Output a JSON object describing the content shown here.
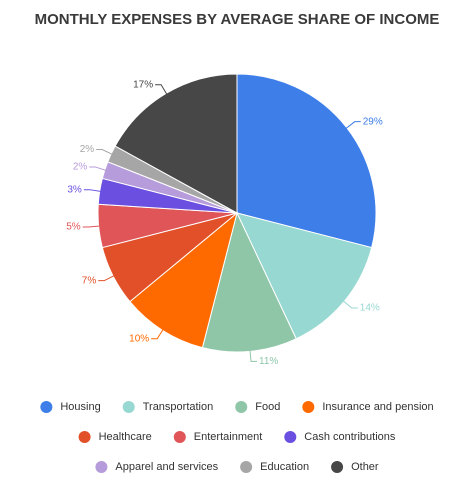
{
  "chart_data": {
    "type": "pie",
    "title": "MONTHLY EXPENSES BY AVERAGE SHARE OF INCOME",
    "categories": [
      "Housing",
      "Transportation",
      "Food",
      "Insurance and pension",
      "Healthcare",
      "Entertainment",
      "Cash contributions",
      "Apparel and services",
      "Education",
      "Other"
    ],
    "values": [
      29,
      14,
      11,
      10,
      7,
      5,
      3,
      2,
      2,
      17
    ],
    "value_labels": [
      "29%",
      "14%",
      "11%",
      "10%",
      "7%",
      "5%",
      "3%",
      "2%",
      "2%",
      "17%"
    ],
    "colors": [
      "#3d7ee8",
      "#98d8d2",
      "#8fc6a8",
      "#ff6a00",
      "#e2502a",
      "#e05558",
      "#6a4fe0",
      "#b79cdb",
      "#a6a6a6",
      "#474747"
    ],
    "legend": "bottom"
  }
}
